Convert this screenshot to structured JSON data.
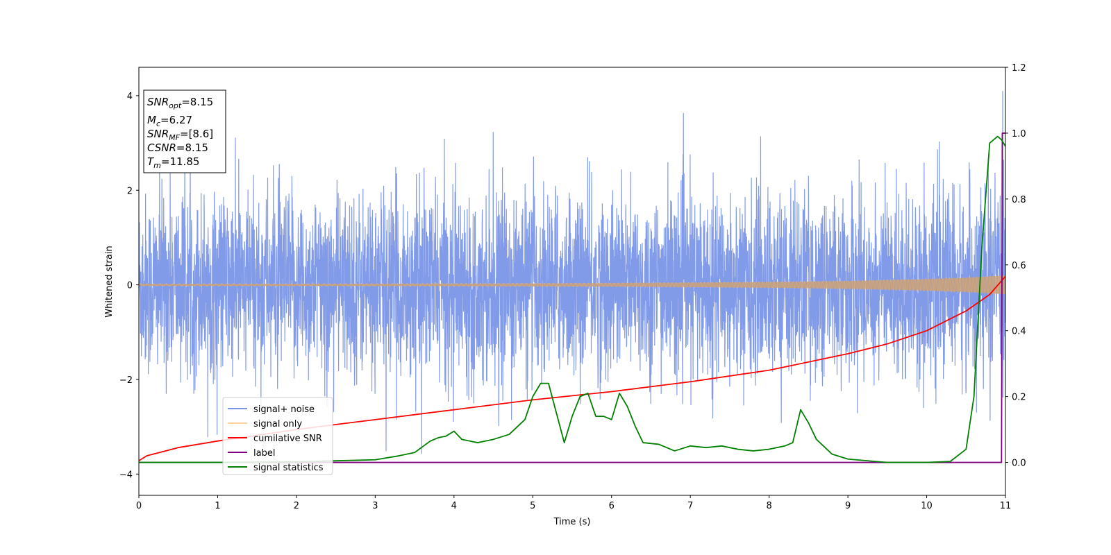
{
  "chart_data": {
    "type": "line",
    "xlabel": "Time (s)",
    "ylabel": "Whitened strain",
    "xlim": [
      0,
      11
    ],
    "ylim_left": [
      -4.45,
      4.6
    ],
    "ylim_right": [
      -0.1,
      1.2
    ],
    "x_ticks": [
      "0",
      "1",
      "2",
      "3",
      "4",
      "5",
      "6",
      "7",
      "8",
      "9",
      "10",
      "11"
    ],
    "y_ticks_left": [
      "−4",
      "−2",
      "0",
      "2",
      "4"
    ],
    "y_ticks_right": [
      "0.0",
      "0.2",
      "0.4",
      "0.6",
      "0.8",
      "1.0",
      "1.2"
    ],
    "grid": false,
    "legend_position": "lower-left",
    "annotation": {
      "snr_opt": {
        "main": "SNR",
        "sub": "opt",
        "value": "=8.15"
      },
      "mc": {
        "main": "M",
        "sub": "c",
        "value": "=6.27"
      },
      "snr_mf": {
        "main": "SNR",
        "sub": "MF",
        "value": "=[8.6]"
      },
      "csnr": {
        "main": "CSNR",
        "sub": "",
        "value": "=8.15"
      },
      "tm": {
        "main": "T",
        "sub": "m",
        "value": "=11.85"
      }
    },
    "series": [
      {
        "name": "signal+ noise",
        "axis": "left",
        "color": "#7b96e8",
        "kind": "noise",
        "typical_std": 0.95,
        "min": -4.05,
        "max": 4.1
      },
      {
        "name": "signal only",
        "axis": "left",
        "color": "#ffc680",
        "kind": "chirp",
        "x": [
          0,
          2,
          4,
          6,
          8,
          9,
          10,
          10.5,
          11
        ],
        "amplitude": [
          0.02,
          0.02,
          0.025,
          0.035,
          0.06,
          0.08,
          0.12,
          0.15,
          0.2
        ]
      },
      {
        "name": "cumilative SNR",
        "axis": "right",
        "color": "#ff0000",
        "x": [
          0,
          0.1,
          0.5,
          1,
          2,
          3,
          4,
          5,
          6,
          7,
          8,
          9,
          9.5,
          10,
          10.5,
          10.8,
          11
        ],
        "y": [
          0.005,
          0.02,
          0.045,
          0.065,
          0.1,
          0.13,
          0.16,
          0.19,
          0.215,
          0.245,
          0.28,
          0.33,
          0.36,
          0.4,
          0.46,
          0.51,
          0.565
        ]
      },
      {
        "name": "label",
        "axis": "right",
        "color": "#800080",
        "x": [
          0,
          10.95,
          10.96,
          11
        ],
        "y": [
          0,
          0,
          1.0,
          1.0
        ]
      },
      {
        "name": "signal statistics",
        "axis": "right",
        "color": "#008000",
        "x": [
          0,
          1,
          2,
          2.5,
          3,
          3.3,
          3.5,
          3.7,
          3.8,
          3.9,
          4.0,
          4.1,
          4.3,
          4.5,
          4.7,
          4.9,
          5.0,
          5.1,
          5.2,
          5.3,
          5.4,
          5.5,
          5.6,
          5.7,
          5.8,
          5.9,
          6.0,
          6.1,
          6.2,
          6.3,
          6.4,
          6.6,
          6.8,
          7.0,
          7.2,
          7.4,
          7.6,
          7.8,
          8.0,
          8.2,
          8.3,
          8.4,
          8.5,
          8.6,
          8.8,
          9.0,
          9.5,
          10.0,
          10.3,
          10.5,
          10.6,
          10.7,
          10.8,
          10.9,
          10.95,
          11.0
        ],
        "y": [
          0.0,
          0.0,
          0.002,
          0.005,
          0.008,
          0.02,
          0.03,
          0.065,
          0.075,
          0.08,
          0.095,
          0.07,
          0.06,
          0.07,
          0.085,
          0.13,
          0.2,
          0.24,
          0.24,
          0.15,
          0.06,
          0.14,
          0.2,
          0.21,
          0.14,
          0.14,
          0.13,
          0.21,
          0.17,
          0.11,
          0.06,
          0.055,
          0.035,
          0.05,
          0.045,
          0.05,
          0.04,
          0.035,
          0.04,
          0.05,
          0.06,
          0.16,
          0.12,
          0.07,
          0.025,
          0.01,
          0.0,
          0.0,
          0.003,
          0.04,
          0.2,
          0.65,
          0.97,
          0.99,
          0.98,
          0.96
        ]
      }
    ]
  }
}
